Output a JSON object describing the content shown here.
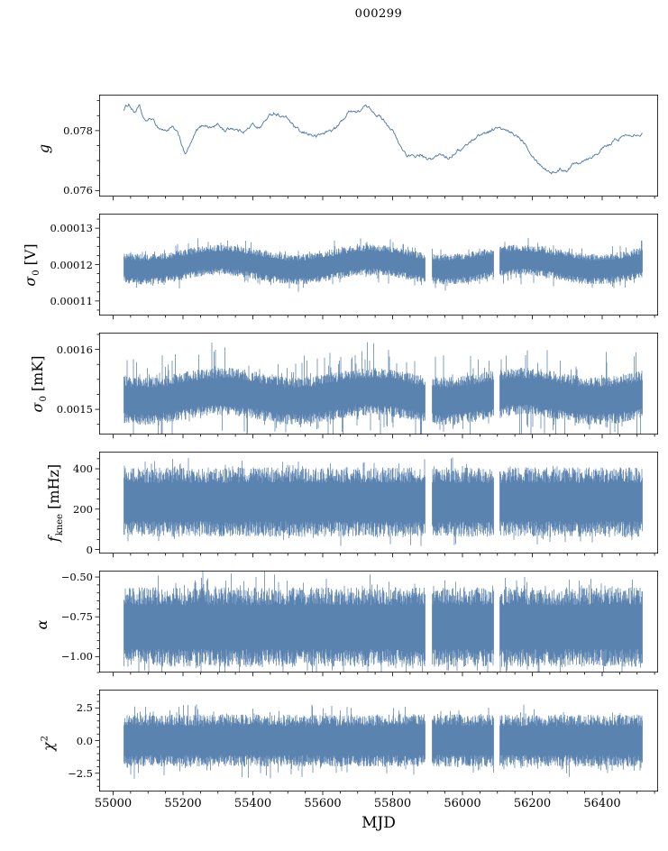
{
  "chart_data": {
    "type": "line",
    "title": "000299",
    "xlabel": "MJD",
    "line_color": "#4c78a8",
    "axis_color": "#000000",
    "xlim": [
      54960,
      56560
    ],
    "x_major_ticks": [
      {
        "v": 55000,
        "label": "55000"
      },
      {
        "v": 55200,
        "label": "55200"
      },
      {
        "v": 55400,
        "label": "55400"
      },
      {
        "v": 55600,
        "label": "55600"
      },
      {
        "v": 55800,
        "label": "55800"
      },
      {
        "v": 56000,
        "label": "56000"
      },
      {
        "v": 56200,
        "label": "56200"
      },
      {
        "v": 56400,
        "label": "56400"
      }
    ],
    "x_minor_step": 50,
    "x_data_range": [
      55030,
      56515
    ],
    "gaps": [
      [
        55893,
        55913
      ],
      [
        56090,
        56106
      ]
    ],
    "panels": [
      {
        "name": "g",
        "label_main": "g",
        "label_sub": "",
        "label_sup": "",
        "label_unit": "",
        "ylim": [
          0.0758,
          0.0792
        ],
        "yticks": [
          {
            "v": 0.076,
            "label": "0.076"
          },
          {
            "v": 0.078,
            "label": "0.078"
          }
        ],
        "y_minor_div": 4,
        "style": "wander",
        "noise_amp": 9e-05,
        "anchors": [
          [
            55030,
            0.0787
          ],
          [
            55045,
            0.0789
          ],
          [
            55060,
            0.0786
          ],
          [
            55075,
            0.0788
          ],
          [
            55090,
            0.0783
          ],
          [
            55110,
            0.0784
          ],
          [
            55130,
            0.0781
          ],
          [
            55150,
            0.078
          ],
          [
            55170,
            0.0781
          ],
          [
            55190,
            0.0778
          ],
          [
            55205,
            0.0772
          ],
          [
            55220,
            0.0775
          ],
          [
            55240,
            0.078
          ],
          [
            55260,
            0.0782
          ],
          [
            55280,
            0.0781
          ],
          [
            55300,
            0.0782
          ],
          [
            55320,
            0.078
          ],
          [
            55340,
            0.0781
          ],
          [
            55360,
            0.078
          ],
          [
            55380,
            0.078
          ],
          [
            55400,
            0.0782
          ],
          [
            55420,
            0.0781
          ],
          [
            55440,
            0.0784
          ],
          [
            55460,
            0.0786
          ],
          [
            55480,
            0.0785
          ],
          [
            55500,
            0.0784
          ],
          [
            55520,
            0.0781
          ],
          [
            55540,
            0.0779
          ],
          [
            55560,
            0.0779
          ],
          [
            55580,
            0.0778
          ],
          [
            55600,
            0.0779
          ],
          [
            55620,
            0.078
          ],
          [
            55640,
            0.0781
          ],
          [
            55660,
            0.0784
          ],
          [
            55680,
            0.0787
          ],
          [
            55700,
            0.0786
          ],
          [
            55720,
            0.0788
          ],
          [
            55740,
            0.0787
          ],
          [
            55760,
            0.0785
          ],
          [
            55780,
            0.0783
          ],
          [
            55800,
            0.078
          ],
          [
            55820,
            0.0775
          ],
          [
            55840,
            0.0772
          ],
          [
            55860,
            0.0771
          ],
          [
            55880,
            0.0772
          ],
          [
            55900,
            0.077
          ],
          [
            55920,
            0.0771
          ],
          [
            55940,
            0.0772
          ],
          [
            55960,
            0.0771
          ],
          [
            55980,
            0.0773
          ],
          [
            56000,
            0.0774
          ],
          [
            56020,
            0.0776
          ],
          [
            56040,
            0.0778
          ],
          [
            56060,
            0.0779
          ],
          [
            56080,
            0.078
          ],
          [
            56100,
            0.0781
          ],
          [
            56120,
            0.078
          ],
          [
            56140,
            0.0779
          ],
          [
            56160,
            0.0778
          ],
          [
            56180,
            0.0776
          ],
          [
            56200,
            0.0772
          ],
          [
            56220,
            0.0769
          ],
          [
            56240,
            0.0767
          ],
          [
            56260,
            0.0766
          ],
          [
            56280,
            0.0767
          ],
          [
            56300,
            0.0767
          ],
          [
            56320,
            0.0769
          ],
          [
            56340,
            0.077
          ],
          [
            56360,
            0.0771
          ],
          [
            56380,
            0.0772
          ],
          [
            56400,
            0.0774
          ],
          [
            56420,
            0.0775
          ],
          [
            56440,
            0.0777
          ],
          [
            56460,
            0.0778
          ],
          [
            56480,
            0.0779
          ],
          [
            56500,
            0.0779
          ],
          [
            56515,
            0.0779
          ]
        ]
      },
      {
        "name": "sigma0_V",
        "label_main": "σ",
        "label_sub": "0",
        "label_sup": "",
        "label_unit": "[V]",
        "ylim": [
          0.000106,
          0.000134
        ],
        "yticks": [
          {
            "v": 0.00011,
            "label": "0.00011"
          },
          {
            "v": 0.00012,
            "label": "0.00012"
          },
          {
            "v": 0.00013,
            "label": "0.00013"
          }
        ],
        "y_minor_div": 4,
        "style": "band",
        "center": 0.00012,
        "half": 4.2e-06,
        "spike": 2.8e-06,
        "modulation": {
          "period": 430,
          "amp": 1.3e-06
        }
      },
      {
        "name": "sigma0_mK",
        "label_main": "σ",
        "label_sub": "0",
        "label_sup": "",
        "label_unit": "[mK]",
        "ylim": [
          0.001458,
          0.001628
        ],
        "yticks": [
          {
            "v": 0.0015,
            "label": "0.0015"
          },
          {
            "v": 0.0016,
            "label": "0.0016"
          }
        ],
        "y_minor_div": 4,
        "style": "band",
        "center": 0.001522,
        "half": 4e-05,
        "spike": 4.5e-05,
        "modulation": {
          "period": 430,
          "amp": 8e-06
        }
      },
      {
        "name": "f_knee",
        "label_main": "f",
        "label_sub": "knee",
        "label_sup": "",
        "label_unit": "[mHz]",
        "ylim": [
          -20,
          485
        ],
        "yticks": [
          {
            "v": 0,
            "label": "0"
          },
          {
            "v": 200,
            "label": "200"
          },
          {
            "v": 400,
            "label": "400"
          }
        ],
        "y_minor_div": 4,
        "style": "band",
        "center": 235,
        "half": 172,
        "spike": 55,
        "modulation": null
      },
      {
        "name": "alpha",
        "label_main": "α",
        "label_sub": "",
        "label_sup": "",
        "label_unit": "",
        "ylim": [
          -1.1,
          -0.46
        ],
        "yticks": [
          {
            "v": -1.0,
            "label": "−1.00"
          },
          {
            "v": -0.75,
            "label": "−0.75"
          },
          {
            "v": -0.5,
            "label": "−0.50"
          }
        ],
        "y_minor_div": 5,
        "style": "band",
        "center": -0.815,
        "half": 0.25,
        "spike": 0.12,
        "modulation": null
      },
      {
        "name": "chi2",
        "label_main": "χ",
        "label_sub": "",
        "label_sup": "2",
        "label_unit": "",
        "ylim": [
          -3.9,
          3.9
        ],
        "yticks": [
          {
            "v": -2.5,
            "label": "−2.5"
          },
          {
            "v": 0.0,
            "label": "0.0"
          },
          {
            "v": 2.5,
            "label": "2.5"
          }
        ],
        "y_minor_div": 5,
        "style": "band",
        "center": 0,
        "half": 2.0,
        "spike": 1.0,
        "modulation": null
      }
    ]
  }
}
